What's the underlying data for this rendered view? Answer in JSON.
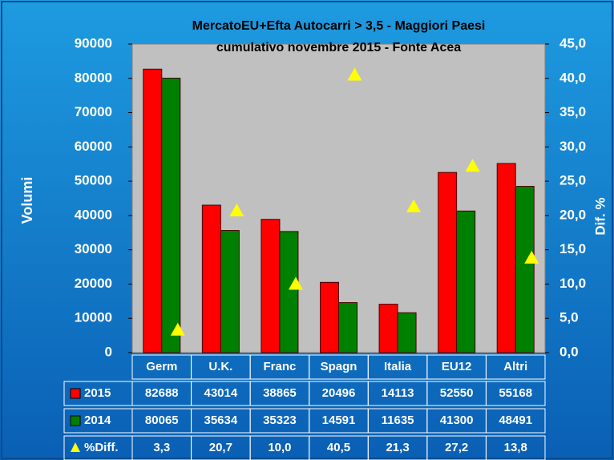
{
  "chart_data": {
    "type": "bar",
    "title": "MercatoEU+Efta Autocarri > 3,5 - Maggiori Paesi",
    "subtitle": "cumulativo  novembre 2015 - Fonte Acea",
    "ylabel": "Volumi",
    "y2label": "Dif. %",
    "categories": [
      "Germ",
      "U.K.",
      "Franc",
      "Spagn",
      "Italia",
      "EU12",
      "Altri"
    ],
    "series": [
      {
        "name": "2015",
        "color": "#ff0000",
        "values": [
          82688,
          43014,
          38865,
          20496,
          14113,
          52550,
          55168
        ]
      },
      {
        "name": "2014",
        "color": "#008000",
        "values": [
          80065,
          35634,
          35323,
          14591,
          11635,
          41300,
          48491
        ]
      },
      {
        "name": "%Diff.",
        "color": "#ffff00",
        "type": "scatter",
        "axis": "y2",
        "values": [
          3.3,
          20.7,
          10.0,
          40.5,
          21.3,
          27.2,
          13.8
        ],
        "value_labels": [
          "3,3",
          "20,7",
          "10,0",
          "40,5",
          "21,3",
          "27,2",
          "13,8"
        ]
      }
    ],
    "ylim": [
      0,
      90000
    ],
    "yticks": [
      0,
      10000,
      20000,
      30000,
      40000,
      50000,
      60000,
      70000,
      80000,
      90000
    ],
    "y2lim": [
      0,
      45
    ],
    "y2ticks": [
      {
        "value": 0,
        "label": "0,0"
      },
      {
        "value": 5,
        "label": "5,0"
      },
      {
        "value": 10,
        "label": "10,0"
      },
      {
        "value": 15,
        "label": "15,0"
      },
      {
        "value": 20,
        "label": "20,0"
      },
      {
        "value": 25,
        "label": "25,0"
      },
      {
        "value": 30,
        "label": "30,0"
      },
      {
        "value": 35,
        "label": "35,0"
      },
      {
        "value": 40,
        "label": "40,0"
      },
      {
        "value": 45,
        "label": "45,0"
      }
    ],
    "plot_background": "#c0c0c0"
  }
}
